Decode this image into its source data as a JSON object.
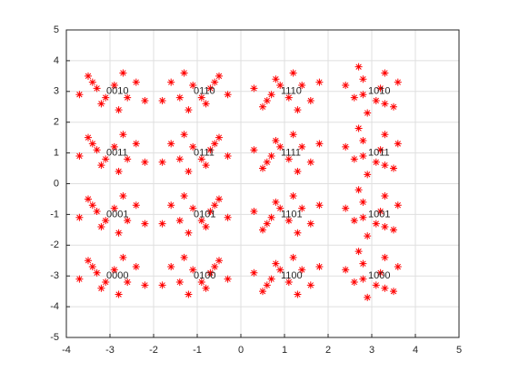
{
  "chart_data": {
    "type": "scatter",
    "grid": true,
    "xlim": [
      -4,
      5
    ],
    "ylim": [
      -5,
      5
    ],
    "xticks": [
      -4,
      -3,
      -2,
      -1,
      0,
      1,
      2,
      3,
      4,
      5
    ],
    "yticks": [
      -5,
      -4,
      -3,
      -2,
      -1,
      0,
      1,
      2,
      3,
      4,
      5
    ],
    "series": [
      {
        "color": "#ff0000",
        "marker": "*",
        "x": [
          -2.9,
          -3.3,
          -2.6,
          -3.2,
          -2.4,
          -3.5,
          -2.8,
          -3.7,
          -2.7,
          -3.1,
          -2.2,
          -3.4,
          -1.1,
          -0.7,
          -1.4,
          -0.8,
          -1.6,
          -0.5,
          -1.2,
          -0.3,
          -1.3,
          -0.9,
          -1.8,
          -0.6,
          1.1,
          0.7,
          1.4,
          0.8,
          1.6,
          0.5,
          1.2,
          0.3,
          1.3,
          0.9,
          1.8,
          0.6,
          3.2,
          3.1,
          2.8,
          2.6,
          3.3,
          3.5,
          2.4,
          2.9,
          3.6,
          2.8,
          2.7,
          3.3,
          -2.9,
          -3.3,
          -2.6,
          -3.2,
          -2.4,
          -3.5,
          -2.8,
          -3.7,
          -2.7,
          -3.1,
          -2.2,
          -3.4,
          -1.1,
          -0.7,
          -1.4,
          -0.8,
          -1.6,
          -0.5,
          -1.2,
          -0.3,
          -1.3,
          -0.9,
          -1.8,
          -0.6,
          1.1,
          0.7,
          1.4,
          0.8,
          1.6,
          0.5,
          1.2,
          0.3,
          1.3,
          0.9,
          1.8,
          0.6,
          3.2,
          3.1,
          2.8,
          2.6,
          3.3,
          3.5,
          2.4,
          2.9,
          3.6,
          2.8,
          2.7,
          3.3,
          -2.9,
          -3.3,
          -2.6,
          -3.2,
          -2.4,
          -3.5,
          -2.8,
          -3.7,
          -2.7,
          -3.1,
          -2.2,
          -3.4,
          -1.1,
          -0.7,
          -1.4,
          -0.8,
          -1.6,
          -0.5,
          -1.2,
          -0.3,
          -1.3,
          -0.9,
          -1.8,
          -0.6,
          1.1,
          0.7,
          1.4,
          0.8,
          1.6,
          0.5,
          1.2,
          0.3,
          1.3,
          0.9,
          1.8,
          0.6,
          3.2,
          3.1,
          2.8,
          2.6,
          3.3,
          3.5,
          2.4,
          2.9,
          3.6,
          2.8,
          2.7,
          3.3,
          -2.9,
          -3.3,
          -2.6,
          -3.2,
          -2.4,
          -3.5,
          -2.8,
          -3.7,
          -2.7,
          -3.1,
          -2.2,
          -3.4,
          -1.1,
          -0.7,
          -1.4,
          -0.8,
          -1.6,
          -0.5,
          -1.2,
          -0.3,
          -1.3,
          -0.9,
          -1.8,
          -0.6,
          1.1,
          0.7,
          1.4,
          0.8,
          1.6,
          0.5,
          1.2,
          0.3,
          1.3,
          0.9,
          1.8,
          0.6,
          3.2,
          3.1,
          2.8,
          2.6,
          3.3,
          3.5,
          2.4,
          2.9,
          3.6,
          2.8,
          2.7,
          3.3
        ],
        "values": [
          3.2,
          3.1,
          2.8,
          2.6,
          3.3,
          3.5,
          2.4,
          2.9,
          3.6,
          2.8,
          2.7,
          3.3,
          3.2,
          3.1,
          2.8,
          2.6,
          3.3,
          3.5,
          2.4,
          2.9,
          3.6,
          2.8,
          2.7,
          3.3,
          2.8,
          2.9,
          3.2,
          3.4,
          2.7,
          2.5,
          3.6,
          3.1,
          2.4,
          3.2,
          3.3,
          2.7,
          3.1,
          2.7,
          3.4,
          2.8,
          3.6,
          2.5,
          3.2,
          2.3,
          3.3,
          2.9,
          3.8,
          2.6,
          1.2,
          1.1,
          0.8,
          0.6,
          1.3,
          1.5,
          0.4,
          0.9,
          1.6,
          0.8,
          0.7,
          1.3,
          1.2,
          1.1,
          0.8,
          0.6,
          1.3,
          1.5,
          0.4,
          0.9,
          1.6,
          0.8,
          0.7,
          1.3,
          0.8,
          0.9,
          1.2,
          1.4,
          0.7,
          0.5,
          1.6,
          1.1,
          0.4,
          1.2,
          1.3,
          0.7,
          1.1,
          0.7,
          1.4,
          0.8,
          1.6,
          0.5,
          1.2,
          0.3,
          1.3,
          0.9,
          1.8,
          0.6,
          -0.8,
          -0.9,
          -1.2,
          -1.4,
          -0.7,
          -0.5,
          -1.6,
          -1.1,
          -0.4,
          -1.2,
          -1.3,
          -0.7,
          -0.8,
          -0.9,
          -1.2,
          -1.4,
          -0.7,
          -0.5,
          -1.6,
          -1.1,
          -0.4,
          -1.2,
          -1.3,
          -0.7,
          -1.2,
          -1.1,
          -0.8,
          -0.6,
          -1.3,
          -1.5,
          -0.4,
          -0.9,
          -1.6,
          -0.8,
          -0.7,
          -1.3,
          -0.9,
          -1.3,
          -0.6,
          -1.2,
          -0.4,
          -1.5,
          -0.8,
          -1.7,
          -0.7,
          -1.1,
          -0.2,
          -1.4,
          -2.8,
          -2.9,
          -3.2,
          -3.4,
          -2.7,
          -2.5,
          -3.6,
          -3.1,
          -2.4,
          -3.2,
          -3.3,
          -2.7,
          -2.8,
          -2.9,
          -3.2,
          -3.4,
          -2.7,
          -2.5,
          -3.6,
          -3.1,
          -2.4,
          -3.2,
          -3.3,
          -2.7,
          -3.2,
          -3.1,
          -2.8,
          -2.6,
          -3.3,
          -3.5,
          -2.4,
          -2.9,
          -3.6,
          -2.8,
          -2.7,
          -3.3,
          -2.9,
          -3.3,
          -2.6,
          -3.2,
          -2.4,
          -3.5,
          -2.8,
          -3.7,
          -2.7,
          -3.1,
          -2.2,
          -3.4
        ]
      }
    ],
    "annotations": [
      {
        "text": "0010",
        "x": -3,
        "y": 3
      },
      {
        "text": "0110",
        "x": -1,
        "y": 3
      },
      {
        "text": "1110",
        "x": 1,
        "y": 3
      },
      {
        "text": "1010",
        "x": 3,
        "y": 3
      },
      {
        "text": "0011",
        "x": -3,
        "y": 1
      },
      {
        "text": "0111",
        "x": -1,
        "y": 1
      },
      {
        "text": "1111",
        "x": 1,
        "y": 1
      },
      {
        "text": "1011",
        "x": 3,
        "y": 1
      },
      {
        "text": "0001",
        "x": -3,
        "y": -1
      },
      {
        "text": "0101",
        "x": -1,
        "y": -1
      },
      {
        "text": "1101",
        "x": 1,
        "y": -1
      },
      {
        "text": "1001",
        "x": 3,
        "y": -1
      },
      {
        "text": "0000",
        "x": -3,
        "y": -3
      },
      {
        "text": "0100",
        "x": -1,
        "y": -3
      },
      {
        "text": "1100",
        "x": 1,
        "y": -3
      },
      {
        "text": "1000",
        "x": 3,
        "y": -3
      }
    ]
  }
}
